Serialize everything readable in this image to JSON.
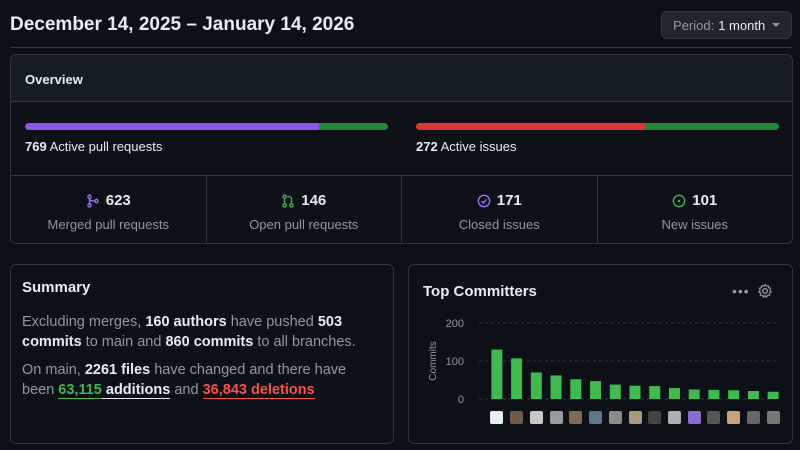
{
  "header": {
    "date_range": "December 14, 2025 – January 14, 2026",
    "period_label": "Period:",
    "period_value": "1 month"
  },
  "overview": {
    "title": "Overview",
    "pull_requests": {
      "count": "769",
      "label": "Active pull requests",
      "merged_fraction": 0.81,
      "colors": [
        "#8957e5",
        "#238636"
      ]
    },
    "issues": {
      "count": "272",
      "label": "Active issues",
      "closed_fraction": 0.63,
      "colors": [
        "#da3633",
        "#238636"
      ]
    },
    "stats": [
      {
        "value": "623",
        "label": "Merged pull requests",
        "icon": "merge-icon",
        "color": "#a371f7"
      },
      {
        "value": "146",
        "label": "Open pull requests",
        "icon": "pull-request-icon",
        "color": "#3fb950"
      },
      {
        "value": "171",
        "label": "Closed issues",
        "icon": "check-circle-icon",
        "color": "#a371f7"
      },
      {
        "value": "101",
        "label": "New issues",
        "icon": "issue-open-icon",
        "color": "#3fb950"
      }
    ]
  },
  "summary": {
    "title": "Summary",
    "p1_a": "Excluding merges, ",
    "authors": "160 authors",
    "p1_b": " have pushed ",
    "commits_main": "503 commits",
    "p1_c": " to main and ",
    "commits_all": "860 commits",
    "p1_d": " to all branches.",
    "p2_a": "On main, ",
    "files": "2261 files",
    "p2_b": " have changed and there have been ",
    "additions_num": "63,115",
    "additions_word": " additions",
    "p2_c": " and ",
    "deletions": "36,843 deletions"
  },
  "top_committers": {
    "title": "Top Committers",
    "menu_icon": "kebab-icon",
    "settings_icon": "gear-icon"
  },
  "chart_data": {
    "type": "bar",
    "title": "Top Committers",
    "ylabel": "Commits",
    "ylim": [
      0,
      200
    ],
    "yticks": [
      0,
      100,
      200
    ],
    "grid": true,
    "color": "#3fb950",
    "values": [
      130,
      107,
      70,
      62,
      52,
      47,
      38,
      35,
      34,
      29,
      25,
      24,
      23,
      21,
      19
    ]
  }
}
